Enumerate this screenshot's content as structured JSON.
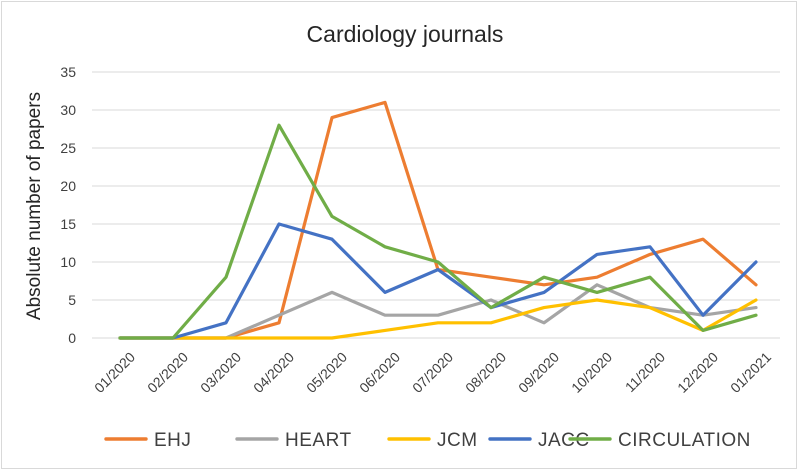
{
  "chart_data": {
    "type": "line",
    "title": "Cardiology journals",
    "xlabel": "",
    "ylabel": "Absolute number of papers",
    "ylim": [
      0,
      35
    ],
    "yticks": [
      0,
      5,
      10,
      15,
      20,
      25,
      30,
      35
    ],
    "grid": "horizontal",
    "legend": "bottom",
    "categories": [
      "01/2020",
      "02/2020",
      "03/2020",
      "04/2020",
      "05/2020",
      "06/2020",
      "07/2020",
      "08/2020",
      "09/2020",
      "10/2020",
      "11/2020",
      "12/2020",
      "01/2021"
    ],
    "series": [
      {
        "name": "EHJ",
        "color": "#ed7d31",
        "values": [
          0,
          0,
          0,
          2,
          29,
          31,
          9,
          8,
          7,
          8,
          11,
          13,
          7
        ]
      },
      {
        "name": "HEART",
        "color": "#a5a5a5",
        "values": [
          0,
          0,
          0,
          3,
          6,
          3,
          3,
          5,
          2,
          7,
          4,
          3,
          4
        ]
      },
      {
        "name": "JCM",
        "color": "#ffc000",
        "values": [
          0,
          0,
          0,
          0,
          0,
          1,
          2,
          2,
          4,
          5,
          4,
          1,
          5
        ]
      },
      {
        "name": "JACC",
        "color": "#4472c4",
        "values": [
          0,
          0,
          2,
          15,
          13,
          6,
          9,
          4,
          6,
          11,
          12,
          3,
          10
        ]
      },
      {
        "name": "CIRCULATION",
        "color": "#70ad47",
        "values": [
          0,
          0,
          8,
          28,
          16,
          12,
          10,
          4,
          8,
          6,
          8,
          1,
          3
        ]
      }
    ]
  }
}
